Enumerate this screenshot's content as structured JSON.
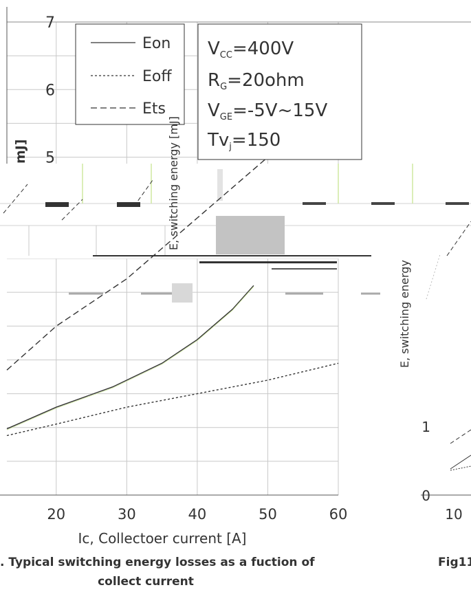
{
  "chart_data": {
    "type": "line",
    "title": "",
    "xlabel": "Ic, Collectoer current [A]",
    "ylabel": "E, switching energy [mJ]",
    "ylabel_fragment": "mJ]",
    "xlim": [
      13,
      60
    ],
    "ylim": [
      0,
      7
    ],
    "x_ticks": [
      "20",
      "30",
      "40",
      "50",
      "60"
    ],
    "y_ticks_top": [
      "7",
      "6",
      "5"
    ],
    "series": [
      {
        "name": "Eon",
        "style": "solid",
        "x": [
          13,
          20,
          28,
          35,
          40,
          45,
          48
        ],
        "y": [
          0.98,
          1.3,
          1.6,
          1.95,
          2.3,
          2.75,
          3.1
        ]
      },
      {
        "name": "Eoff",
        "style": "dotted",
        "x": [
          13,
          20,
          30,
          40,
          50,
          60
        ],
        "y": [
          0.88,
          1.05,
          1.3,
          1.5,
          1.7,
          1.95
        ]
      },
      {
        "name": "Ets",
        "style": "dashed",
        "x": [
          13,
          20,
          30,
          40,
          45,
          50,
          60
        ],
        "y": [
          1.85,
          2.5,
          3.2,
          4.1,
          4.55,
          5.0,
          6.2
        ]
      }
    ],
    "legend": {
      "placement": "top-left",
      "entries": [
        "Eon",
        "Eoff",
        "Ets"
      ]
    },
    "conditions": [
      {
        "base": "V",
        "sub": "CC",
        "rest": "=400V"
      },
      {
        "base": "R",
        "sub": "G",
        "rest": "=20ohm"
      },
      {
        "base": "V",
        "sub": "GE",
        "rest": "=-5V~15V"
      },
      {
        "base": "Tv",
        "sub": "j",
        "rest": "=150"
      }
    ],
    "caption_line1": ". Typical switching energy losses as a fuction of",
    "caption_line2": "collect current",
    "grid": true
  },
  "right_panel": {
    "ylabel": "E, switching energy",
    "y_ticks": [
      "1",
      "0"
    ],
    "x_tick": "10",
    "caption_fragment": "Fig11"
  },
  "colors": {
    "axis": "#555555",
    "grid": "#c8c8c8",
    "line": "#333333",
    "highlight": "#cfe8a0"
  }
}
